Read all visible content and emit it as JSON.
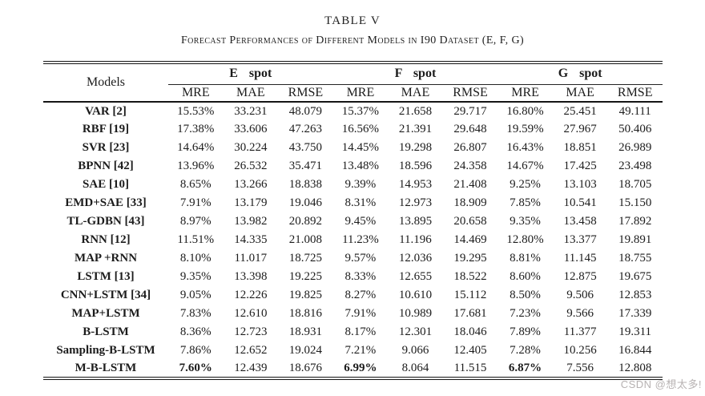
{
  "page": {
    "title": "TABLE V",
    "subtitle": "Forecast Performances of Different Models in I90 Dataset (E, F, G)",
    "watermark": "CSDN @想太多!",
    "colors": {
      "background": "#ffffff",
      "text": "#1c1c1c",
      "rule": "#151515",
      "watermark": "#b7b2b2"
    }
  },
  "table": {
    "models_header": "Models",
    "groups": [
      {
        "label": "E spot"
      },
      {
        "label": "F spot"
      },
      {
        "label": "G spot"
      }
    ],
    "sub_headers": [
      "MRE",
      "MAE",
      "RMSE",
      "MRE",
      "MAE",
      "RMSE",
      "MRE",
      "MAE",
      "RMSE"
    ],
    "rows": [
      {
        "model": "VAR [2]",
        "values": [
          "15.53%",
          "33.231",
          "48.079",
          "15.37%",
          "21.658",
          "29.717",
          "16.80%",
          "25.451",
          "49.111"
        ],
        "bold_value_indices": []
      },
      {
        "model": "RBF [19]",
        "values": [
          "17.38%",
          "33.606",
          "47.263",
          "16.56%",
          "21.391",
          "29.648",
          "19.59%",
          "27.967",
          "50.406"
        ],
        "bold_value_indices": []
      },
      {
        "model": "SVR [23]",
        "values": [
          "14.64%",
          "30.224",
          "43.750",
          "14.45%",
          "19.298",
          "26.807",
          "16.43%",
          "18.851",
          "26.989"
        ],
        "bold_value_indices": []
      },
      {
        "model": "BPNN [42]",
        "values": [
          "13.96%",
          "26.532",
          "35.471",
          "13.48%",
          "18.596",
          "24.358",
          "14.67%",
          "17.425",
          "23.498"
        ],
        "bold_value_indices": []
      },
      {
        "model": "SAE [10]",
        "values": [
          "8.65%",
          "13.266",
          "18.838",
          "9.39%",
          "14.953",
          "21.408",
          "9.25%",
          "13.103",
          "18.705"
        ],
        "bold_value_indices": []
      },
      {
        "model": "EMD+SAE [33]",
        "values": [
          "7.91%",
          "13.179",
          "19.046",
          "8.31%",
          "12.973",
          "18.909",
          "7.85%",
          "10.541",
          "15.150"
        ],
        "bold_value_indices": []
      },
      {
        "model": "TL-GDBN [43]",
        "values": [
          "8.97%",
          "13.982",
          "20.892",
          "9.45%",
          "13.895",
          "20.658",
          "9.35%",
          "13.458",
          "17.892"
        ],
        "bold_value_indices": []
      },
      {
        "model": "RNN [12]",
        "values": [
          "11.51%",
          "14.335",
          "21.008",
          "11.23%",
          "11.196",
          "14.469",
          "12.80%",
          "13.377",
          "19.891"
        ],
        "bold_value_indices": []
      },
      {
        "model": "MAP +RNN",
        "values": [
          "8.10%",
          "11.017",
          "18.725",
          "9.57%",
          "12.036",
          "19.295",
          "8.81%",
          "11.145",
          "18.755"
        ],
        "bold_value_indices": []
      },
      {
        "model": "LSTM [13]",
        "values": [
          "9.35%",
          "13.398",
          "19.225",
          "8.33%",
          "12.655",
          "18.522",
          "8.60%",
          "12.875",
          "19.675"
        ],
        "bold_value_indices": []
      },
      {
        "model": "CNN+LSTM [34]",
        "values": [
          "9.05%",
          "12.226",
          "19.825",
          "8.27%",
          "10.610",
          "15.112",
          "8.50%",
          "9.506",
          "12.853"
        ],
        "bold_value_indices": []
      },
      {
        "model": "MAP+LSTM",
        "values": [
          "7.83%",
          "12.610",
          "18.816",
          "7.91%",
          "10.989",
          "17.681",
          "7.23%",
          "9.566",
          "17.339"
        ],
        "bold_value_indices": []
      },
      {
        "model": "B-LSTM",
        "values": [
          "8.36%",
          "12.723",
          "18.931",
          "8.17%",
          "12.301",
          "18.046",
          "7.89%",
          "11.377",
          "19.311"
        ],
        "bold_value_indices": []
      },
      {
        "model": "Sampling-B-LSTM",
        "values": [
          "7.86%",
          "12.652",
          "19.024",
          "7.21%",
          "9.066",
          "12.405",
          "7.28%",
          "10.256",
          "16.844"
        ],
        "bold_value_indices": []
      },
      {
        "model": "M-B-LSTM",
        "values": [
          "7.60%",
          "12.439",
          "18.676",
          "6.99%",
          "8.064",
          "11.515",
          "6.87%",
          "7.556",
          "12.808"
        ],
        "bold_value_indices": [
          0,
          3,
          6
        ]
      }
    ]
  }
}
